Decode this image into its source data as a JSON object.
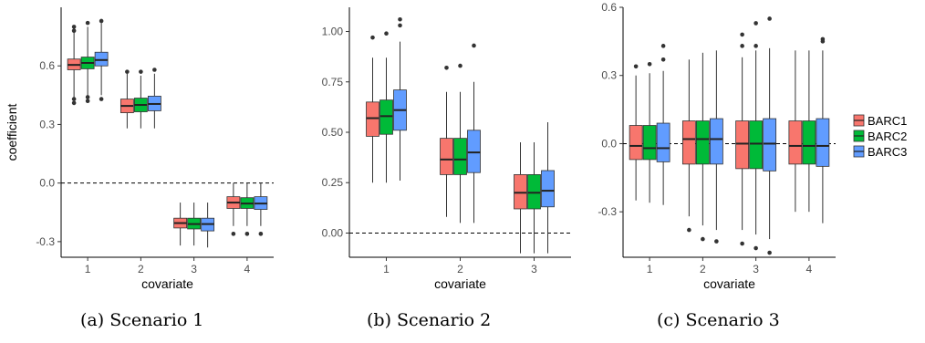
{
  "colors": {
    "BARC1": "#F8766D",
    "BARC2": "#00BA38",
    "BARC3": "#619CFF"
  },
  "legend": {
    "labels": [
      "BARC1",
      "BARC2",
      "BARC3"
    ],
    "placement": "right"
  },
  "captions": [
    "(a) Scenario 1",
    "(b) Scenario 2",
    "(c) Scenario 3"
  ],
  "chart_data": [
    {
      "type": "box",
      "xlabel": "covariate",
      "ylabel": "coefficient",
      "categories": [
        "1",
        "2",
        "3",
        "4"
      ],
      "ylim": [
        -0.38,
        0.9
      ],
      "yticks": [
        -0.3,
        0.0,
        0.3,
        0.6
      ],
      "ytick_labels": [
        "-0.3",
        "0.0",
        "0.3",
        "0.6"
      ],
      "reference_line": 0,
      "series": [
        {
          "name": "BARC1",
          "boxes": [
            {
              "wmin": 0.44,
              "q1": 0.58,
              "median": 0.605,
              "q3": 0.635,
              "wmax": 0.8,
              "outliers": [
                0.41,
                0.43,
                0.78,
                0.8
              ]
            },
            {
              "wmin": 0.28,
              "q1": 0.36,
              "median": 0.395,
              "q3": 0.43,
              "wmax": 0.56,
              "outliers": [
                0.57
              ]
            },
            {
              "wmin": -0.32,
              "q1": -0.23,
              "median": -0.205,
              "q3": -0.18,
              "wmax": -0.1,
              "outliers": []
            },
            {
              "wmin": -0.22,
              "q1": -0.13,
              "median": -0.1,
              "q3": -0.07,
              "wmax": 0.0,
              "outliers": [
                -0.26
              ]
            }
          ]
        },
        {
          "name": "BARC2",
          "boxes": [
            {
              "wmin": 0.45,
              "q1": 0.585,
              "median": 0.615,
              "q3": 0.645,
              "wmax": 0.8,
              "outliers": [
                0.42,
                0.44,
                0.82
              ]
            },
            {
              "wmin": 0.28,
              "q1": 0.365,
              "median": 0.4,
              "q3": 0.435,
              "wmax": 0.55,
              "outliers": [
                0.57
              ]
            },
            {
              "wmin": -0.32,
              "q1": -0.235,
              "median": -0.21,
              "q3": -0.18,
              "wmax": -0.1,
              "outliers": []
            },
            {
              "wmin": -0.22,
              "q1": -0.13,
              "median": -0.105,
              "q3": -0.075,
              "wmax": 0.0,
              "outliers": [
                -0.26
              ]
            }
          ]
        },
        {
          "name": "BARC3",
          "boxes": [
            {
              "wmin": 0.45,
              "q1": 0.6,
              "median": 0.63,
              "q3": 0.67,
              "wmax": 0.82,
              "outliers": [
                0.43,
                0.83
              ]
            },
            {
              "wmin": 0.28,
              "q1": 0.37,
              "median": 0.405,
              "q3": 0.445,
              "wmax": 0.56,
              "outliers": [
                0.58
              ]
            },
            {
              "wmin": -0.33,
              "q1": -0.245,
              "median": -0.21,
              "q3": -0.18,
              "wmax": -0.1,
              "outliers": []
            },
            {
              "wmin": -0.22,
              "q1": -0.135,
              "median": -0.105,
              "q3": -0.07,
              "wmax": 0.0,
              "outliers": [
                -0.26
              ]
            }
          ]
        }
      ]
    },
    {
      "type": "box",
      "xlabel": "covariate",
      "ylabel": "",
      "categories": [
        "1",
        "2",
        "3"
      ],
      "ylim": [
        -0.12,
        1.12
      ],
      "yticks": [
        0.0,
        0.25,
        0.5,
        0.75,
        1.0
      ],
      "ytick_labels": [
        "0.00",
        "0.25",
        "0.50",
        "0.75",
        "1.00"
      ],
      "reference_line": 0,
      "series": [
        {
          "name": "BARC1",
          "boxes": [
            {
              "wmin": 0.25,
              "q1": 0.48,
              "median": 0.57,
              "q3": 0.65,
              "wmax": 0.87,
              "outliers": [
                0.97
              ]
            },
            {
              "wmin": 0.08,
              "q1": 0.29,
              "median": 0.365,
              "q3": 0.47,
              "wmax": 0.7,
              "outliers": [
                0.82
              ]
            },
            {
              "wmin": -0.1,
              "q1": 0.12,
              "median": 0.2,
              "q3": 0.29,
              "wmax": 0.45,
              "outliers": []
            }
          ]
        },
        {
          "name": "BARC2",
          "boxes": [
            {
              "wmin": 0.25,
              "q1": 0.49,
              "median": 0.58,
              "q3": 0.66,
              "wmax": 0.87,
              "outliers": [
                0.99
              ]
            },
            {
              "wmin": 0.05,
              "q1": 0.29,
              "median": 0.365,
              "q3": 0.47,
              "wmax": 0.7,
              "outliers": [
                0.83
              ]
            },
            {
              "wmin": -0.1,
              "q1": 0.12,
              "median": 0.2,
              "q3": 0.29,
              "wmax": 0.45,
              "outliers": []
            }
          ]
        },
        {
          "name": "BARC3",
          "boxes": [
            {
              "wmin": 0.26,
              "q1": 0.51,
              "median": 0.61,
              "q3": 0.71,
              "wmax": 0.95,
              "outliers": [
                1.03,
                1.06
              ]
            },
            {
              "wmin": 0.05,
              "q1": 0.3,
              "median": 0.4,
              "q3": 0.51,
              "wmax": 0.75,
              "outliers": [
                0.93
              ]
            },
            {
              "wmin": -0.1,
              "q1": 0.13,
              "median": 0.21,
              "q3": 0.31,
              "wmax": 0.55,
              "outliers": []
            }
          ]
        }
      ]
    },
    {
      "type": "box",
      "xlabel": "covariate",
      "ylabel": "",
      "categories": [
        "1",
        "2",
        "3",
        "4"
      ],
      "ylim": [
        -0.5,
        0.6
      ],
      "yticks": [
        -0.3,
        0.0,
        0.3,
        0.6
      ],
      "ytick_labels": [
        "-0.3",
        "0.0",
        "0.3",
        "0.6"
      ],
      "reference_line": 0,
      "series": [
        {
          "name": "BARC1",
          "boxes": [
            {
              "wmin": -0.25,
              "q1": -0.07,
              "median": -0.01,
              "q3": 0.08,
              "wmax": 0.3,
              "outliers": [
                0.34
              ]
            },
            {
              "wmin": -0.32,
              "q1": -0.09,
              "median": 0.02,
              "q3": 0.1,
              "wmax": 0.37,
              "outliers": [
                -0.38
              ]
            },
            {
              "wmin": -0.38,
              "q1": -0.11,
              "median": 0.0,
              "q3": 0.1,
              "wmax": 0.38,
              "outliers": [
                0.43,
                0.48,
                -0.44
              ]
            },
            {
              "wmin": -0.3,
              "q1": -0.09,
              "median": -0.01,
              "q3": 0.1,
              "wmax": 0.41,
              "outliers": []
            }
          ]
        },
        {
          "name": "BARC2",
          "boxes": [
            {
              "wmin": -0.26,
              "q1": -0.07,
              "median": -0.02,
              "q3": 0.08,
              "wmax": 0.31,
              "outliers": [
                0.35
              ]
            },
            {
              "wmin": -0.36,
              "q1": -0.09,
              "median": 0.02,
              "q3": 0.1,
              "wmax": 0.4,
              "outliers": [
                -0.42
              ]
            },
            {
              "wmin": -0.4,
              "q1": -0.11,
              "median": 0.0,
              "q3": 0.1,
              "wmax": 0.41,
              "outliers": [
                0.43,
                0.53,
                -0.46
              ]
            },
            {
              "wmin": -0.3,
              "q1": -0.09,
              "median": -0.01,
              "q3": 0.1,
              "wmax": 0.41,
              "outliers": []
            }
          ]
        },
        {
          "name": "BARC3",
          "boxes": [
            {
              "wmin": -0.27,
              "q1": -0.08,
              "median": -0.02,
              "q3": 0.09,
              "wmax": 0.32,
              "outliers": [
                0.37,
                0.43
              ]
            },
            {
              "wmin": -0.38,
              "q1": -0.09,
              "median": 0.02,
              "q3": 0.11,
              "wmax": 0.41,
              "outliers": [
                -0.43
              ]
            },
            {
              "wmin": -0.42,
              "q1": -0.12,
              "median": 0.0,
              "q3": 0.11,
              "wmax": 0.42,
              "outliers": [
                0.55,
                -0.48
              ]
            },
            {
              "wmin": -0.35,
              "q1": -0.1,
              "median": -0.01,
              "q3": 0.11,
              "wmax": 0.41,
              "outliers": [
                0.45,
                0.46
              ]
            }
          ]
        }
      ]
    }
  ]
}
